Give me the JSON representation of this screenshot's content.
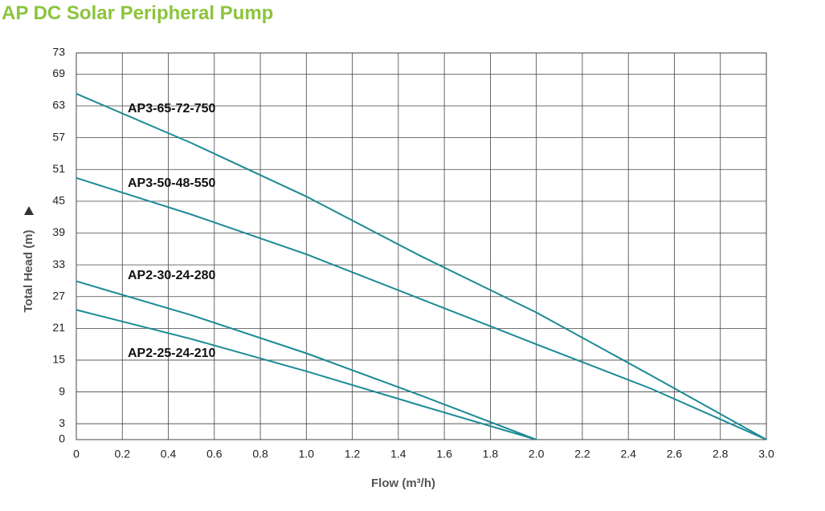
{
  "chart_data": {
    "type": "line",
    "title": "AP DC Solar Peripheral Pump",
    "xlabel": "Flow (m³/h)",
    "ylabel": "Total Head (m)",
    "xlim": [
      0,
      3
    ],
    "ylim": [
      0,
      73
    ],
    "xticks": [
      0,
      0.2,
      0.4,
      0.6,
      0.8,
      {
        "value": 1,
        "label": "1.0"
      },
      1.2,
      1.4,
      1.6,
      1.8,
      {
        "value": 2,
        "label": "2.0"
      },
      2.2,
      2.4,
      2.6,
      2.8,
      {
        "value": 3,
        "label": "3.0"
      }
    ],
    "yticks": [
      0,
      3,
      9,
      15,
      21,
      27,
      33,
      39,
      45,
      51,
      57,
      63,
      69,
      73
    ],
    "grid": true,
    "series": [
      {
        "name": "AP3-65-72-750",
        "color": "#1b8a96",
        "x": [
          0,
          0.5,
          1.0,
          1.5,
          2.0,
          2.5,
          3.0
        ],
        "values": [
          65.3,
          56.0,
          45.9,
          34.6,
          24.0,
          12.1,
          0
        ]
      },
      {
        "name": "AP3-50-48-550",
        "color": "#1b8a96",
        "x": [
          0,
          0.5,
          1.0,
          1.5,
          2.0,
          2.5,
          3.0
        ],
        "values": [
          49.4,
          42.5,
          35.0,
          26.5,
          18.0,
          9.6,
          0
        ]
      },
      {
        "name": "AP2-30-24-280",
        "color": "#1b8a96",
        "x": [
          0,
          0.5,
          1.0,
          1.5,
          2.0
        ],
        "values": [
          29.9,
          23.5,
          16.3,
          8.3,
          0
        ]
      },
      {
        "name": "AP2-25-24-210",
        "color": "#1b8a96",
        "x": [
          0,
          0.5,
          1.0,
          1.5,
          2.0
        ],
        "values": [
          24.5,
          19.0,
          12.9,
          6.4,
          0
        ]
      }
    ]
  }
}
